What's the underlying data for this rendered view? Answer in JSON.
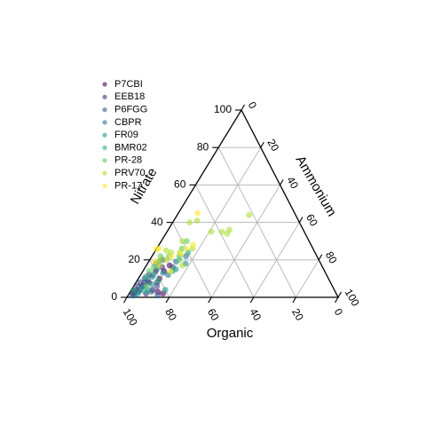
{
  "chart_data": {
    "type": "scatter",
    "subtype": "ternary",
    "axes": {
      "left": {
        "title": "Nitrate",
        "ticks": [
          "0",
          "20",
          "40",
          "60",
          "80",
          "100"
        ],
        "values": [
          0,
          20,
          40,
          60,
          80,
          100
        ]
      },
      "right": {
        "title": "Ammonium",
        "ticks": [
          "0",
          "20",
          "40",
          "60",
          "80",
          "100"
        ],
        "values": [
          0,
          20,
          40,
          60,
          80,
          100
        ]
      },
      "bottom": {
        "title": "Organic",
        "ticks": [
          "100",
          "80",
          "60",
          "40",
          "20",
          "0"
        ],
        "values": [
          100,
          80,
          60,
          40,
          20,
          0
        ]
      }
    },
    "grid": true,
    "legend": {
      "position": "top-left"
    },
    "point_alpha": 0.6,
    "series": [
      {
        "name": "P7CBI",
        "color": "#440154",
        "points": [
          {
            "organic": 96,
            "nitrate": 2,
            "ammonium": 2
          },
          {
            "organic": 90,
            "nitrate": 6,
            "ammonium": 4
          },
          {
            "organic": 86,
            "nitrate": 8,
            "ammonium": 6
          },
          {
            "organic": 84,
            "nitrate": 3,
            "ammonium": 13
          },
          {
            "organic": 80,
            "nitrate": 10,
            "ammonium": 10
          },
          {
            "organic": 76,
            "nitrate": 14,
            "ammonium": 10
          },
          {
            "organic": 72,
            "nitrate": 17,
            "ammonium": 11
          },
          {
            "organic": 82,
            "nitrate": 2,
            "ammonium": 16
          },
          {
            "organic": 94,
            "nitrate": 4,
            "ammonium": 2
          }
        ]
      },
      {
        "name": "EEB18",
        "color": "#472d7b",
        "points": [
          {
            "organic": 95,
            "nitrate": 3,
            "ammonium": 2
          },
          {
            "organic": 92,
            "nitrate": 6,
            "ammonium": 2
          },
          {
            "organic": 88,
            "nitrate": 8,
            "ammonium": 4
          },
          {
            "organic": 84,
            "nitrate": 12,
            "ammonium": 4
          },
          {
            "organic": 82,
            "nitrate": 8,
            "ammonium": 10
          },
          {
            "organic": 80,
            "nitrate": 14,
            "ammonium": 6
          },
          {
            "organic": 76,
            "nitrate": 16,
            "ammonium": 8
          },
          {
            "organic": 86,
            "nitrate": 4,
            "ammonium": 10
          },
          {
            "organic": 90,
            "nitrate": 2,
            "ammonium": 8
          }
        ]
      },
      {
        "name": "P6FGG",
        "color": "#3b528b",
        "points": [
          {
            "organic": 97,
            "nitrate": 1,
            "ammonium": 2
          },
          {
            "organic": 93,
            "nitrate": 3,
            "ammonium": 4
          },
          {
            "organic": 90,
            "nitrate": 8,
            "ammonium": 2
          },
          {
            "organic": 87,
            "nitrate": 10,
            "ammonium": 3
          },
          {
            "organic": 83,
            "nitrate": 6,
            "ammonium": 11
          },
          {
            "organic": 78,
            "nitrate": 18,
            "ammonium": 4
          },
          {
            "organic": 74,
            "nitrate": 20,
            "ammonium": 6
          },
          {
            "organic": 71,
            "nitrate": 16,
            "ammonium": 13
          },
          {
            "organic": 85,
            "nitrate": 1,
            "ammonium": 14
          }
        ]
      },
      {
        "name": "CBPR",
        "color": "#2c728e",
        "points": [
          {
            "organic": 96,
            "nitrate": 1,
            "ammonium": 3
          },
          {
            "organic": 92,
            "nitrate": 4,
            "ammonium": 4
          },
          {
            "organic": 89,
            "nitrate": 6,
            "ammonium": 5
          },
          {
            "organic": 86,
            "nitrate": 9,
            "ammonium": 5
          },
          {
            "organic": 83,
            "nitrate": 11,
            "ammonium": 6
          },
          {
            "organic": 79,
            "nitrate": 15,
            "ammonium": 6
          },
          {
            "organic": 75,
            "nitrate": 12,
            "ammonium": 13
          },
          {
            "organic": 68,
            "nitrate": 19,
            "ammonium": 13
          },
          {
            "organic": 62,
            "nitrate": 22,
            "ammonium": 16
          },
          {
            "organic": 87,
            "nitrate": 3,
            "ammonium": 10
          }
        ]
      },
      {
        "name": "FR09",
        "color": "#21918c",
        "points": [
          {
            "organic": 94,
            "nitrate": 2,
            "ammonium": 4
          },
          {
            "organic": 91,
            "nitrate": 5,
            "ammonium": 4
          },
          {
            "organic": 88,
            "nitrate": 4,
            "ammonium": 8
          },
          {
            "organic": 85,
            "nitrate": 7,
            "ammonium": 8
          },
          {
            "organic": 82,
            "nitrate": 12,
            "ammonium": 6
          },
          {
            "organic": 77,
            "nitrate": 13,
            "ammonium": 10
          },
          {
            "organic": 70,
            "nitrate": 15,
            "ammonium": 15
          },
          {
            "organic": 64,
            "nitrate": 18,
            "ammonium": 18
          },
          {
            "organic": 80,
            "nitrate": 4,
            "ammonium": 16
          }
        ]
      },
      {
        "name": "BMR02",
        "color": "#28ae80",
        "points": [
          {
            "organic": 95,
            "nitrate": 4,
            "ammonium": 1
          },
          {
            "organic": 90,
            "nitrate": 3,
            "ammonium": 7
          },
          {
            "organic": 86,
            "nitrate": 11,
            "ammonium": 3
          },
          {
            "organic": 81,
            "nitrate": 9,
            "ammonium": 10
          },
          {
            "organic": 76,
            "nitrate": 19,
            "ammonium": 5
          },
          {
            "organic": 72,
            "nitrate": 14,
            "ammonium": 14
          },
          {
            "organic": 65,
            "nitrate": 22,
            "ammonium": 13
          },
          {
            "organic": 60,
            "nitrate": 24,
            "ammonium": 16
          }
        ]
      },
      {
        "name": "PR-28",
        "color": "#5ec962",
        "points": [
          {
            "organic": 88,
            "nitrate": 6,
            "ammonium": 6
          },
          {
            "organic": 83,
            "nitrate": 14,
            "ammonium": 3
          },
          {
            "organic": 80,
            "nitrate": 16,
            "ammonium": 4
          },
          {
            "organic": 74,
            "nitrate": 22,
            "ammonium": 4
          },
          {
            "organic": 70,
            "nitrate": 22,
            "ammonium": 8
          },
          {
            "organic": 66,
            "nitrate": 20,
            "ammonium": 14
          },
          {
            "organic": 62,
            "nitrate": 26,
            "ammonium": 12
          },
          {
            "organic": 58,
            "nitrate": 30,
            "ammonium": 12
          }
        ]
      },
      {
        "name": "PRV70",
        "color": "#addc30",
        "points": [
          {
            "organic": 77,
            "nitrate": 17,
            "ammonium": 6
          },
          {
            "organic": 75,
            "nitrate": 20,
            "ammonium": 5
          },
          {
            "organic": 72,
            "nitrate": 20,
            "ammonium": 8
          },
          {
            "organic": 70,
            "nitrate": 25,
            "ammonium": 5
          },
          {
            "organic": 68,
            "nitrate": 24,
            "ammonium": 8
          },
          {
            "organic": 66,
            "nitrate": 17,
            "ammonium": 17
          },
          {
            "organic": 64,
            "nitrate": 24,
            "ammonium": 12
          },
          {
            "organic": 60,
            "nitrate": 30,
            "ammonium": 10
          },
          {
            "organic": 57,
            "nitrate": 26,
            "ammonium": 17
          },
          {
            "organic": 52,
            "nitrate": 40,
            "ammonium": 8
          },
          {
            "organic": 48,
            "nitrate": 41,
            "ammonium": 11
          },
          {
            "organic": 39,
            "nitrate": 35,
            "ammonium": 26
          },
          {
            "organic": 37,
            "nitrate": 34,
            "ammonium": 29
          },
          {
            "organic": 35,
            "nitrate": 36,
            "ammonium": 29
          },
          {
            "organic": 22,
            "nitrate": 44,
            "ammonium": 34
          },
          {
            "organic": 44,
            "nitrate": 35,
            "ammonium": 21
          }
        ]
      },
      {
        "name": "PR-17",
        "color": "#fde725",
        "points": [
          {
            "organic": 78,
            "nitrate": 19,
            "ammonium": 3
          },
          {
            "organic": 75,
            "nitrate": 26,
            "ammonium": 0
          },
          {
            "organic": 73,
            "nitrate": 14,
            "ammonium": 13
          },
          {
            "organic": 73,
            "nitrate": 26,
            "ammonium": 1
          },
          {
            "organic": 69,
            "nitrate": 22,
            "ammonium": 9
          },
          {
            "organic": 64,
            "nitrate": 23,
            "ammonium": 13
          },
          {
            "organic": 60,
            "nitrate": 26,
            "ammonium": 14
          },
          {
            "organic": 56,
            "nitrate": 28,
            "ammonium": 16
          },
          {
            "organic": 46,
            "nitrate": 45,
            "ammonium": 9
          }
        ]
      }
    ]
  }
}
